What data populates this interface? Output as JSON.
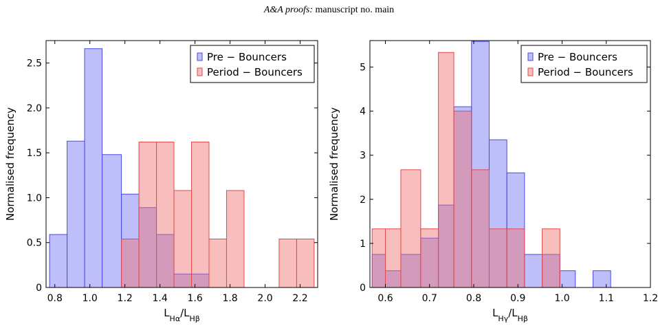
{
  "header": {
    "journal": "A&A proofs:",
    "rest": "manuscript no. main"
  },
  "colors": {
    "pre_fill": "rgba(110,110,245,0.45)",
    "pre_stroke": "#4a4ae8",
    "period_fill": "rgba(240,110,110,0.45)",
    "period_stroke": "#e24a4a"
  },
  "chart_data": [
    {
      "type": "bar",
      "ylabel": "Normalised frequency",
      "xlabel_main": "L",
      "xlabel_num": "Hα",
      "xlabel_den": "Hβ",
      "xlim": [
        0.75,
        2.3
      ],
      "ylim": [
        0,
        2.75
      ],
      "xticks": [
        0.8,
        1.0,
        1.2,
        1.4,
        1.6,
        1.8,
        2.0,
        2.2
      ],
      "xtick_labels": [
        "0.8",
        "1.0",
        "1.2",
        "1.4",
        "1.6",
        "1.8",
        "2.0",
        "2.2"
      ],
      "yticks": [
        0,
        0.5,
        1.0,
        1.5,
        2.0,
        2.5
      ],
      "ytick_labels": [
        "0",
        "0.5",
        "1.0",
        "1.5",
        "2.0",
        "2.5"
      ],
      "legend": [
        "Pre − Bouncers",
        "Period − Bouncers"
      ],
      "legend_position": "top-right",
      "series": [
        {
          "name": "Pre − Bouncers",
          "color_key": "pre",
          "bins": [
            {
              "x0": 0.77,
              "x1": 0.87,
              "v": 0.59
            },
            {
              "x0": 0.87,
              "x1": 0.97,
              "v": 1.63
            },
            {
              "x0": 0.97,
              "x1": 1.07,
              "v": 2.66
            },
            {
              "x0": 1.07,
              "x1": 1.18,
              "v": 1.48
            },
            {
              "x0": 1.18,
              "x1": 1.28,
              "v": 1.04
            },
            {
              "x0": 1.28,
              "x1": 1.38,
              "v": 0.89
            },
            {
              "x0": 1.38,
              "x1": 1.48,
              "v": 0.59
            },
            {
              "x0": 1.48,
              "x1": 1.58,
              "v": 0.15
            },
            {
              "x0": 1.58,
              "x1": 1.68,
              "v": 0.15
            }
          ]
        },
        {
          "name": "Period − Bouncers",
          "color_key": "period",
          "bins": [
            {
              "x0": 1.18,
              "x1": 1.28,
              "v": 0.54
            },
            {
              "x0": 1.28,
              "x1": 1.38,
              "v": 1.62
            },
            {
              "x0": 1.38,
              "x1": 1.48,
              "v": 1.62
            },
            {
              "x0": 1.48,
              "x1": 1.58,
              "v": 1.08
            },
            {
              "x0": 1.58,
              "x1": 1.68,
              "v": 1.62
            },
            {
              "x0": 1.68,
              "x1": 1.78,
              "v": 0.54
            },
            {
              "x0": 1.78,
              "x1": 1.88,
              "v": 1.08
            },
            {
              "x0": 2.08,
              "x1": 2.18,
              "v": 0.54
            },
            {
              "x0": 2.18,
              "x1": 2.28,
              "v": 0.54
            }
          ]
        }
      ]
    },
    {
      "type": "bar",
      "ylabel": "Normalised frequency",
      "xlabel_main": "L",
      "xlabel_num": "Hγ",
      "xlabel_den": "Hβ",
      "xlim": [
        0.565,
        1.2
      ],
      "ylim": [
        0,
        5.6
      ],
      "xticks": [
        0.6,
        0.7,
        0.8,
        0.9,
        1.0,
        1.1,
        1.2
      ],
      "xtick_labels": [
        "0.6",
        "0.7",
        "0.8",
        "0.9",
        "1.0",
        "1.1",
        "1.2"
      ],
      "yticks": [
        0,
        1,
        2,
        3,
        4,
        5
      ],
      "ytick_labels": [
        "0",
        "1",
        "2",
        "3",
        "4",
        "5"
      ],
      "legend": [
        "Pre − Bouncers",
        "Period − Bouncers"
      ],
      "legend_position": "top-right",
      "series": [
        {
          "name": "Pre − Bouncers",
          "color_key": "pre",
          "bins": [
            {
              "x0": 0.57,
              "x1": 0.6,
              "v": 0.75
            },
            {
              "x0": 0.6,
              "x1": 0.635,
              "v": 0.38
            },
            {
              "x0": 0.635,
              "x1": 0.68,
              "v": 0.75
            },
            {
              "x0": 0.68,
              "x1": 0.72,
              "v": 1.12
            },
            {
              "x0": 0.72,
              "x1": 0.755,
              "v": 1.87
            },
            {
              "x0": 0.755,
              "x1": 0.795,
              "v": 4.1
            },
            {
              "x0": 0.795,
              "x1": 0.835,
              "v": 5.58
            },
            {
              "x0": 0.835,
              "x1": 0.875,
              "v": 3.35
            },
            {
              "x0": 0.875,
              "x1": 0.915,
              "v": 2.6
            },
            {
              "x0": 0.915,
              "x1": 0.955,
              "v": 0.75
            },
            {
              "x0": 0.955,
              "x1": 0.995,
              "v": 0.75
            },
            {
              "x0": 0.995,
              "x1": 1.03,
              "v": 0.38
            },
            {
              "x0": 1.03,
              "x1": 1.07,
              "v": 0
            },
            {
              "x0": 1.07,
              "x1": 1.11,
              "v": 0.38
            }
          ]
        },
        {
          "name": "Period − Bouncers",
          "color_key": "period",
          "bins": [
            {
              "x0": 0.57,
              "x1": 0.6,
              "v": 1.33
            },
            {
              "x0": 0.6,
              "x1": 0.635,
              "v": 1.33
            },
            {
              "x0": 0.635,
              "x1": 0.68,
              "v": 2.67
            },
            {
              "x0": 0.68,
              "x1": 0.72,
              "v": 1.33
            },
            {
              "x0": 0.72,
              "x1": 0.755,
              "v": 5.33
            },
            {
              "x0": 0.755,
              "x1": 0.795,
              "v": 4.0
            },
            {
              "x0": 0.795,
              "x1": 0.835,
              "v": 2.67
            },
            {
              "x0": 0.835,
              "x1": 0.875,
              "v": 1.33
            },
            {
              "x0": 0.875,
              "x1": 0.915,
              "v": 1.33
            },
            {
              "x0": 0.915,
              "x1": 0.955,
              "v": 0
            },
            {
              "x0": 0.955,
              "x1": 0.995,
              "v": 1.33
            }
          ]
        }
      ]
    }
  ]
}
